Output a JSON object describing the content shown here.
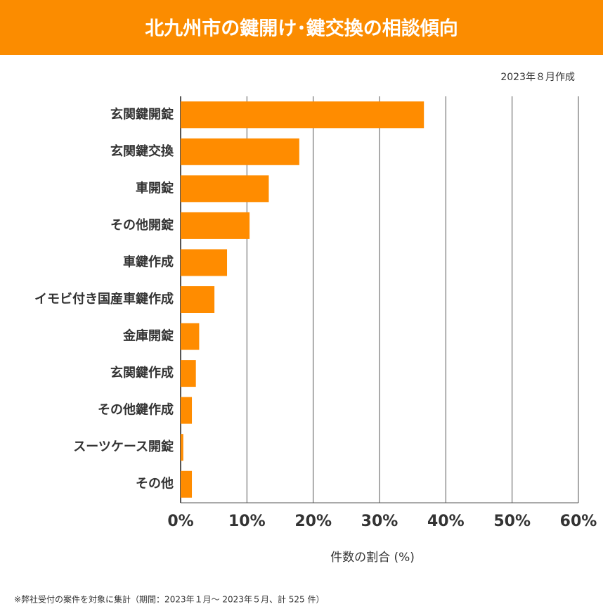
{
  "chart_data": {
    "type": "barh",
    "title": "北九州市の鍵開け･鍵交換の相談傾向",
    "subtitle": "2023年８月作成",
    "xlabel": "件数の割合 (%)",
    "footnote": "※弊社受付の案件を対象に集計（期間：2023年１月～ 2023年５月、計 525 件）",
    "categories": [
      "玄関鍵開錠",
      "玄関鍵交換",
      "車開錠",
      "その他開錠",
      "車鍵作成",
      "イモビ付き国産車鍵作成",
      "金庫開錠",
      "玄関鍵作成",
      "その他鍵作成",
      "スーツケース開錠",
      "その他"
    ],
    "values": [
      36.7,
      17.9,
      13.3,
      10.4,
      7.0,
      5.1,
      2.8,
      2.3,
      1.7,
      0.4,
      1.7
    ],
    "color": "#ff8c00",
    "xlim": [
      0,
      60
    ],
    "xticks": [
      {
        "value": 0,
        "label": "0%"
      },
      {
        "value": 10,
        "label": "10%"
      },
      {
        "value": 20,
        "label": "20%"
      },
      {
        "value": 30,
        "label": "30%"
      },
      {
        "value": 40,
        "label": "40%"
      },
      {
        "value": 50,
        "label": "50%"
      },
      {
        "value": 60,
        "label": "60%"
      }
    ],
    "grid": true
  }
}
